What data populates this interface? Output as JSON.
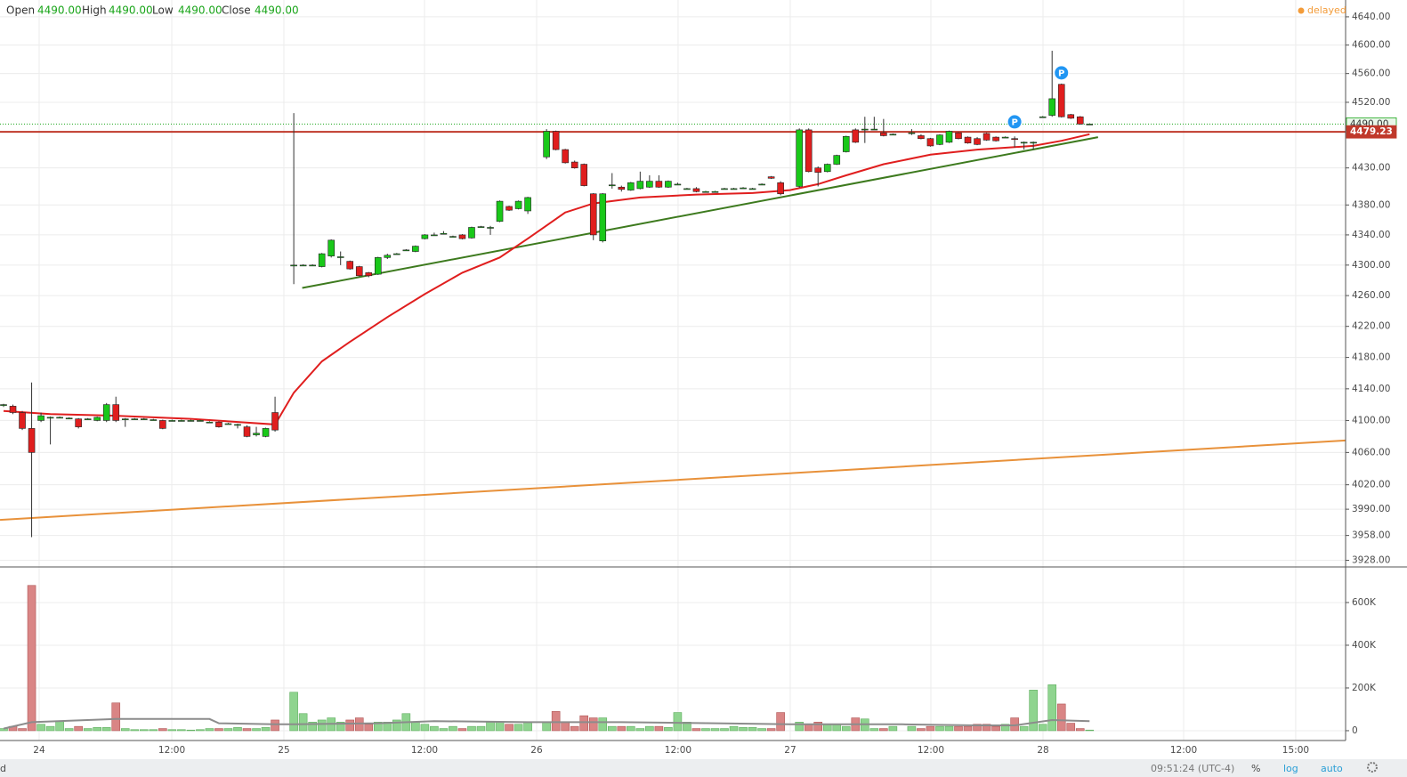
{
  "header": {
    "open_label": "Open",
    "open": "4490.00",
    "high_label": "High",
    "high": "4490.00",
    "low_label": "Low",
    "low": "4490.00",
    "close_label": "Close",
    "close": "4490.00",
    "status": "delayed"
  },
  "footer": {
    "left": "d",
    "time": "09:51:24 (UTC-4)",
    "percent": "%",
    "log": "log",
    "auto": "auto"
  },
  "chart_data": {
    "type": "candlestick",
    "log": true,
    "grid": true,
    "up_color": "#19c819",
    "down_color": "#e01e1e",
    "xlim": [
      -0.38,
      143.35
    ],
    "xticks": [
      {
        "value": 3.8,
        "label": "24"
      },
      {
        "value": 17.97,
        "label": "12:00"
      },
      {
        "value": 29.94,
        "label": "25"
      },
      {
        "value": 44.96,
        "label": "12:00"
      },
      {
        "value": 56.94,
        "label": "26"
      },
      {
        "value": 72.05,
        "label": "12:00"
      },
      {
        "value": 84.03,
        "label": "27"
      },
      {
        "value": 99.05,
        "label": "12:00"
      },
      {
        "value": 111.03,
        "label": "28"
      },
      {
        "value": 126.05,
        "label": "12:00"
      },
      {
        "value": 138.02,
        "label": "15:00"
      }
    ],
    "ylim": [
      3920,
      4664
    ],
    "yticks": [
      {
        "value": 4640,
        "label": "4640.00"
      },
      {
        "value": 4600,
        "label": "4600.00"
      },
      {
        "value": 4560,
        "label": "4560.00"
      },
      {
        "value": 4520,
        "label": "4520.00"
      },
      {
        "value": 4430,
        "label": "4430.00"
      },
      {
        "value": 4380,
        "label": "4380.00"
      },
      {
        "value": 4340,
        "label": "4340.00"
      },
      {
        "value": 4300,
        "label": "4300.00"
      },
      {
        "value": 4260,
        "label": "4260.00"
      },
      {
        "value": 4220,
        "label": "4220.00"
      },
      {
        "value": 4180,
        "label": "4180.00"
      },
      {
        "value": 4140,
        "label": "4140.00"
      },
      {
        "value": 4100,
        "label": "4100.00"
      },
      {
        "value": 4060,
        "label": "4060.00"
      },
      {
        "value": 4020,
        "label": "4020.00"
      },
      {
        "value": 3990,
        "label": "3990.00"
      },
      {
        "value": 3958,
        "label": "3958.00"
      },
      {
        "value": 3928,
        "label": "3928.00"
      }
    ],
    "x": [
      0,
      1,
      2,
      3,
      4,
      5,
      6,
      7,
      8,
      9,
      10,
      11,
      12,
      13,
      14,
      15,
      16,
      17,
      18,
      19,
      20,
      21,
      22,
      23,
      24,
      25,
      26,
      27,
      28,
      29,
      31,
      32,
      33,
      34,
      35,
      36,
      37,
      38,
      39,
      40,
      41,
      42,
      43,
      44,
      45,
      46,
      47,
      48,
      49,
      50,
      51,
      52,
      53,
      54,
      55,
      56,
      58,
      59,
      60,
      61,
      62,
      63,
      64,
      65,
      66,
      67,
      68,
      69,
      70,
      71,
      72,
      73,
      74,
      75,
      76,
      77,
      78,
      79,
      80,
      81,
      82,
      83,
      85,
      86,
      87,
      88,
      89,
      90,
      91,
      92,
      93,
      94,
      95,
      97,
      98,
      99,
      100,
      101,
      102,
      103,
      104,
      105,
      106,
      107,
      108,
      109,
      110,
      111,
      112,
      113,
      114,
      115,
      116
    ],
    "open": [
      4119,
      4118,
      4110,
      4090,
      4100,
      4103,
      4104,
      4103,
      4102,
      4102,
      4100,
      4100,
      4120,
      4102,
      4102,
      4102,
      4101,
      4100,
      4100,
      4100,
      4100,
      4100,
      4098,
      4098,
      4096,
      4095,
      4092,
      4082,
      4080,
      4110,
      4300,
      4300,
      4300,
      4298,
      4312,
      4311,
      4305,
      4298,
      4290,
      4288,
      4310,
      4315,
      4320,
      4318,
      4335,
      4340,
      4342,
      4338,
      4340,
      4336,
      4351,
      4350,
      4358,
      4378,
      4375,
      4372,
      4445,
      4480,
      4455,
      4438,
      4435,
      4395,
      4332,
      4407,
      4404,
      4400,
      4402,
      4404,
      4412,
      4404,
      4408,
      4402,
      4402,
      4398,
      4398,
      4402,
      4402,
      4403,
      4402,
      4408,
      4418,
      4410,
      4405,
      4482,
      4430,
      4425,
      4435,
      4452,
      4482,
      4483,
      4483,
      4478,
      4476,
      4478,
      4474,
      4470,
      4462,
      4465,
      4478,
      4472,
      4470,
      4477,
      4472,
      4472,
      4470,
      4465,
      4464,
      4500,
      4502,
      4545,
      4503,
      4500,
      4490
    ],
    "high": [
      4121,
      4120,
      4112,
      4148,
      4110,
      4105,
      4105,
      4104,
      4103,
      4103,
      4105,
      4122,
      4130,
      4103,
      4103,
      4103,
      4102,
      4101,
      4101,
      4101,
      4101,
      4101,
      4099,
      4099,
      4097,
      4096,
      4094,
      4092,
      4091,
      4130,
      4505,
      4301,
      4301,
      4316,
      4334,
      4318,
      4306,
      4299,
      4291,
      4311,
      4315,
      4316,
      4321,
      4326,
      4341,
      4343,
      4345,
      4339,
      4341,
      4351,
      4352,
      4352,
      4386,
      4379,
      4386,
      4391,
      4483,
      4481,
      4456,
      4440,
      4436,
      4396,
      4396,
      4423,
      4406,
      4411,
      4425,
      4420,
      4420,
      4413,
      4410,
      4403,
      4404,
      4399,
      4399,
      4403,
      4403,
      4404,
      4403,
      4409,
      4419,
      4412,
      4484,
      4484,
      4432,
      4436,
      4448,
      4474,
      4484,
      4500,
      4500,
      4497,
      4477,
      4483,
      4476,
      4471,
      4476,
      4481,
      4479,
      4473,
      4472,
      4478,
      4473,
      4473,
      4473,
      4466,
      4466,
      4501,
      4592,
      4546,
      4504,
      4501,
      4491
    ],
    "low": [
      4117,
      4108,
      4088,
      3956,
      4098,
      4070,
      4103,
      4102,
      4090,
      4101,
      4099,
      4098,
      4098,
      4092,
      4101,
      4101,
      4100,
      4089,
      4099,
      4099,
      4099,
      4099,
      4097,
      4091,
      4095,
      4090,
      4079,
      4080,
      4079,
      4086,
      4275,
      4299,
      4299,
      4297,
      4310,
      4300,
      4294,
      4285,
      4284,
      4287,
      4308,
      4314,
      4319,
      4317,
      4334,
      4339,
      4341,
      4337,
      4334,
      4335,
      4350,
      4340,
      4357,
      4372,
      4374,
      4368,
      4442,
      4454,
      4436,
      4429,
      4405,
      4333,
      4330,
      4402,
      4398,
      4399,
      4401,
      4403,
      4403,
      4403,
      4407,
      4401,
      4397,
      4397,
      4397,
      4401,
      4401,
      4402,
      4401,
      4407,
      4415,
      4393,
      4403,
      4424,
      4405,
      4424,
      4434,
      4451,
      4464,
      4464,
      4482,
      4473,
      4475,
      4475,
      4469,
      4459,
      4461,
      4464,
      4469,
      4463,
      4461,
      4467,
      4466,
      4471,
      4458,
      4455,
      4455,
      4499,
      4500,
      4499,
      4497,
      4489,
      4489
    ],
    "close": [
      4120,
      4110,
      4090,
      4060,
      4106,
      4104,
      4104,
      4103,
      4092,
      4102,
      4104,
      4120,
      4100,
      4102,
      4102,
      4102,
      4101,
      4090,
      4100,
      4100,
      4100,
      4100,
      4098,
      4092,
      4096,
      4095,
      4080,
      4084,
      4090,
      4088,
      4300,
      4300,
      4300,
      4315,
      4333,
      4311,
      4295,
      4286,
      4286,
      4310,
      4313,
      4315,
      4320,
      4325,
      4340,
      4340,
      4342,
      4338,
      4335,
      4350,
      4351,
      4350,
      4385,
      4373,
      4385,
      4390,
      4480,
      4455,
      4437,
      4430,
      4406,
      4340,
      4395,
      4407,
      4401,
      4410,
      4412,
      4412,
      4404,
      4412,
      4408,
      4402,
      4398,
      4398,
      4398,
      4402,
      4402,
      4403,
      4402,
      4408,
      4416,
      4395,
      4482,
      4425,
      4424,
      4435,
      4447,
      4473,
      4465,
      4483,
      4483,
      4474,
      4476,
      4478,
      4470,
      4460,
      4475,
      4480,
      4470,
      4464,
      4462,
      4468,
      4467,
      4472,
      4469,
      4465,
      4465,
      4500,
      4525,
      4500,
      4498,
      4490,
      4490
    ],
    "ma": {
      "color": "#e01e1e",
      "x": [
        0,
        5,
        12,
        20,
        29,
        31,
        34,
        37,
        41,
        45,
        49,
        53,
        56,
        60,
        63,
        68,
        74,
        80,
        84,
        87,
        90,
        94,
        99,
        104,
        110,
        113,
        116
      ],
      "values": [
        4112,
        4108,
        4106,
        4102,
        4095,
        4135,
        4175,
        4200,
        4232,
        4262,
        4290,
        4310,
        4335,
        4370,
        4382,
        4390,
        4394,
        4396,
        4400,
        4408,
        4420,
        4435,
        4448,
        4455,
        4460,
        4467,
        4476
      ]
    },
    "trendlines": [
      {
        "color": "#3d7a1e",
        "x": [
          31.9,
          116.9
        ],
        "y": [
          4270,
          4472
        ]
      },
      {
        "color": "#e8913a",
        "x": [
          -0.38,
          143.35
        ],
        "y": [
          3977,
          4075
        ]
      }
    ],
    "last_prices": [
      {
        "value": 4490,
        "label": "4490.00",
        "color": "#1aa51a",
        "style": "dotted"
      },
      {
        "value": 4479.23,
        "label": "4479.23",
        "color": "#c0392b",
        "style": "solid"
      }
    ],
    "markers": {
      "label": "P",
      "color": "#2196f3",
      "x": [
        108,
        113
      ],
      "y": [
        4493,
        4561
      ]
    },
    "volume": {
      "up_color": "#8fd48f",
      "down_color": "#d98585",
      "values": [
        10000,
        20000,
        10000,
        680000,
        30000,
        20000,
        45000,
        10000,
        20000,
        10000,
        15000,
        15000,
        130000,
        10000,
        5000,
        5000,
        5000,
        10000,
        5000,
        5000,
        3000,
        5000,
        10000,
        10000,
        10000,
        15000,
        10000,
        10000,
        15000,
        50000,
        180000,
        80000,
        40000,
        50000,
        60000,
        40000,
        50000,
        60000,
        30000,
        40000,
        40000,
        50000,
        80000,
        40000,
        30000,
        20000,
        10000,
        20000,
        10000,
        20000,
        20000,
        40000,
        40000,
        30000,
        30000,
        40000,
        40000,
        90000,
        40000,
        20000,
        70000,
        60000,
        60000,
        20000,
        20000,
        20000,
        10000,
        20000,
        20000,
        15000,
        85000,
        40000,
        10000,
        10000,
        10000,
        10000,
        20000,
        15000,
        15000,
        10000,
        10000,
        85000,
        40000,
        30000,
        40000,
        30000,
        30000,
        20000,
        60000,
        55000,
        10000,
        10000,
        20000,
        20000,
        10000,
        20000,
        20000,
        20000,
        20000,
        20000,
        30000,
        30000,
        20000,
        30000,
        60000,
        20000,
        190000,
        30000,
        215000,
        125000,
        35000,
        10000,
        3000
      ],
      "ylim": [
        -46000,
        754000
      ],
      "yticks": [
        0,
        {
          "value": 200000,
          "label": "200K"
        },
        {
          "value": 400000,
          "label": "400K"
        },
        {
          "value": 600000,
          "label": "600K"
        }
      ],
      "ma": {
        "color": "#8c8c8c",
        "x": [
          0,
          3,
          12,
          22,
          23,
          29,
          31,
          40,
          46,
          56,
          66,
          76,
          84,
          96,
          104,
          108,
          112,
          116
        ],
        "values": [
          10000,
          40000,
          55000,
          55000,
          35000,
          30000,
          30000,
          35000,
          45000,
          40000,
          40000,
          35000,
          30000,
          30000,
          25000,
          25000,
          50000,
          45000
        ]
      }
    }
  }
}
